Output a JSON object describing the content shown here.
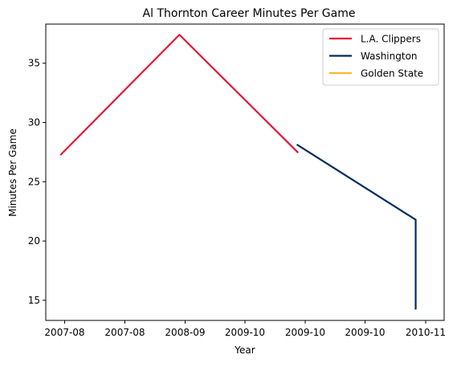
{
  "chart_data": {
    "type": "line",
    "title": "Al Thornton Career Minutes Per Game",
    "xlabel": "Year",
    "ylabel": "Minutes Per Game",
    "x_ticks": [
      "2007-08",
      "2007-08",
      "2008-09",
      "2009-10",
      "2009-10",
      "2009-10",
      "2010-11"
    ],
    "y_ticks": [
      15,
      20,
      25,
      30,
      35
    ],
    "xlim": [
      "2007-08-15",
      "2010-12-28"
    ],
    "ylim": [
      13.3,
      38.3
    ],
    "grid": false,
    "legend_position": "top-right",
    "series": [
      {
        "name": "L.A. Clippers",
        "color": "#E31837",
        "points": [
          {
            "x": "2007-10-01",
            "y": 27.3
          },
          {
            "x": "2008-10-01",
            "y": 37.4
          },
          {
            "x": "2009-10-01",
            "y": 27.5
          }
        ]
      },
      {
        "name": "Washington",
        "color": "#002B5C",
        "points": [
          {
            "x": "2009-10-01",
            "y": 28.1
          },
          {
            "x": "2010-10-01",
            "y": 21.8
          },
          {
            "x": "2010-10-01",
            "y": 14.3
          }
        ]
      },
      {
        "name": "Golden State",
        "color": "#FDB927",
        "points": [
          {
            "x": "2010-10-01",
            "y": 14.3
          }
        ]
      }
    ]
  }
}
